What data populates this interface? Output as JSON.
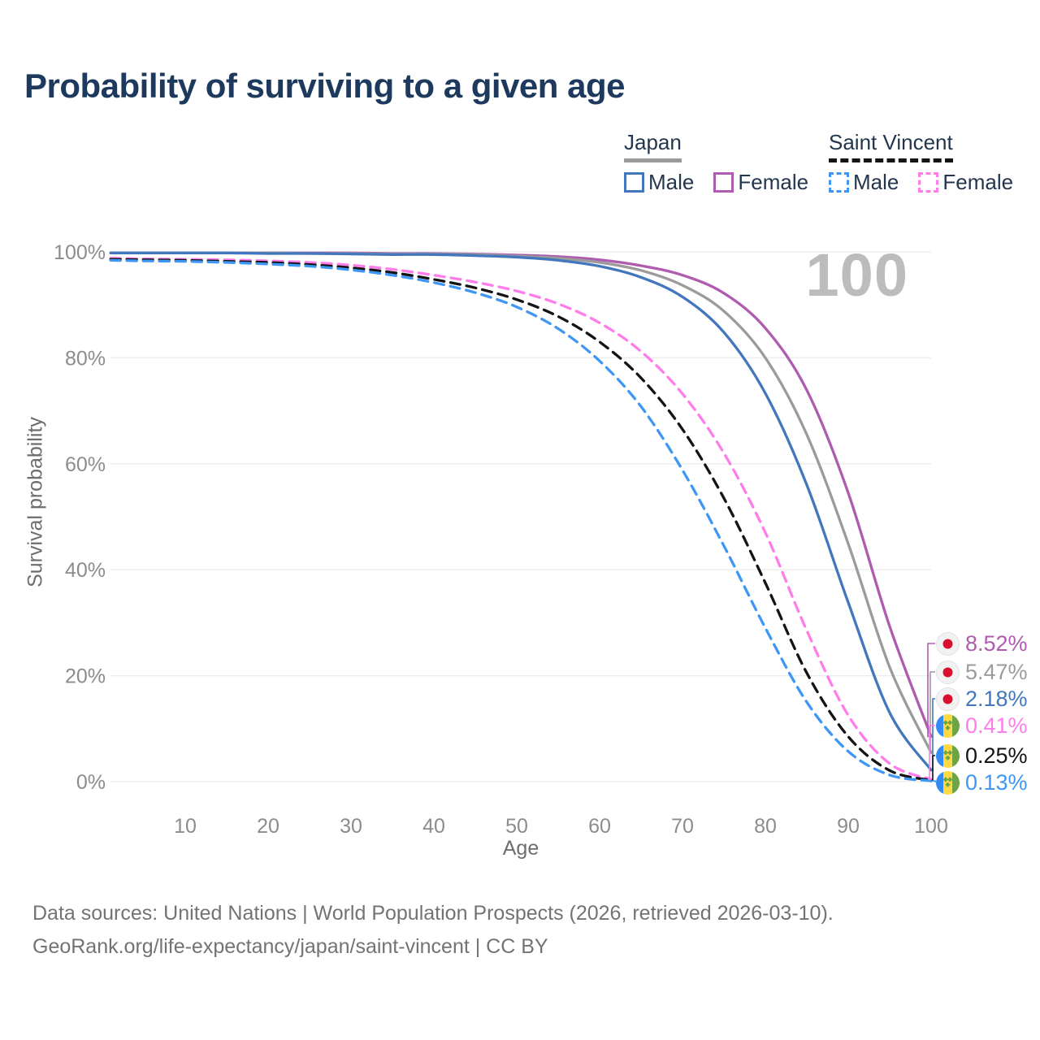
{
  "title": "Probability of surviving to a given age",
  "watermark": "100",
  "legend": {
    "groups": [
      {
        "id": "japan",
        "label": "Japan",
        "underline_style": "solid",
        "underline_color": "#9b9b9b",
        "items": [
          {
            "id": "japan-male",
            "label": "Male",
            "color": "#4277bd",
            "dashed": false
          },
          {
            "id": "japan-female",
            "label": "Female",
            "color": "#ae5bb0",
            "dashed": false
          }
        ]
      },
      {
        "id": "saint-vincent",
        "label": "Saint Vincent",
        "underline_style": "dashed",
        "underline_color": "#141414",
        "items": [
          {
            "id": "sv-male",
            "label": "Male",
            "color": "#3e97f5",
            "dashed": true
          },
          {
            "id": "sv-female",
            "label": "Female",
            "color": "#ff7dea",
            "dashed": true
          }
        ]
      }
    ]
  },
  "chart_data": {
    "type": "line",
    "title": "Probability of surviving to a given age",
    "xlabel": "Age",
    "ylabel": "Survival probability",
    "xlim": [
      0,
      100
    ],
    "ylim": [
      0,
      100
    ],
    "grid": true,
    "x_ticks": [
      10,
      20,
      30,
      40,
      50,
      60,
      70,
      80,
      90,
      100
    ],
    "y_ticks": [
      {
        "value": 0,
        "label": "0%"
      },
      {
        "value": 20,
        "label": "20%"
      },
      {
        "value": 40,
        "label": "40%"
      },
      {
        "value": 60,
        "label": "60%"
      },
      {
        "value": 80,
        "label": "80%"
      },
      {
        "value": 100,
        "label": "100%"
      }
    ],
    "x": [
      1,
      5,
      10,
      15,
      20,
      25,
      30,
      35,
      40,
      45,
      50,
      55,
      60,
      65,
      70,
      75,
      80,
      85,
      90,
      95,
      100
    ],
    "series": [
      {
        "id": "japan-female",
        "name": "Japan Female",
        "color": "#ae5bb0",
        "dashed": false,
        "flag": "japan",
        "end_label": "8.52%",
        "values": [
          99.8,
          99.8,
          99.8,
          99.8,
          99.8,
          99.8,
          99.8,
          99.7,
          99.7,
          99.6,
          99.4,
          99.1,
          98.5,
          97.4,
          95.6,
          92.2,
          85.6,
          73.9,
          54.5,
          29.3,
          8.52
        ]
      },
      {
        "id": "japan-both",
        "name": "Japan",
        "color": "#9b9b9b",
        "dashed": false,
        "flag": "japan",
        "end_label": "5.47%",
        "values": [
          99.8,
          99.8,
          99.8,
          99.8,
          99.8,
          99.7,
          99.7,
          99.6,
          99.6,
          99.5,
          99.2,
          98.8,
          98.0,
          96.5,
          93.7,
          88.8,
          80.0,
          65.5,
          44.9,
          21.6,
          5.47
        ]
      },
      {
        "id": "japan-male",
        "name": "Japan Male",
        "color": "#4277bd",
        "dashed": false,
        "flag": "japan",
        "end_label": "2.18%",
        "values": [
          99.8,
          99.8,
          99.8,
          99.8,
          99.7,
          99.7,
          99.6,
          99.5,
          99.5,
          99.3,
          99.0,
          98.4,
          97.3,
          95.2,
          91.5,
          84.8,
          73.3,
          56.0,
          33.8,
          13.0,
          2.18
        ]
      },
      {
        "id": "sv-female",
        "name": "Saint Vincent Female",
        "color": "#ff7dea",
        "dashed": true,
        "flag": "saint-vincent",
        "end_label": "0.41%",
        "values": [
          98.8,
          98.7,
          98.6,
          98.5,
          98.3,
          98.0,
          97.5,
          96.7,
          95.6,
          94.3,
          92.6,
          90.2,
          86.6,
          81.2,
          73.2,
          62.0,
          47.0,
          28.5,
          12.5,
          3.4,
          0.41
        ]
      },
      {
        "id": "sv-both",
        "name": "Saint Vincent",
        "color": "#141414",
        "dashed": true,
        "flag": "saint-vincent",
        "end_label": "0.25%",
        "values": [
          98.6,
          98.5,
          98.4,
          98.2,
          98.0,
          97.6,
          97.0,
          96.1,
          94.8,
          93.2,
          91.0,
          87.8,
          83.0,
          76.2,
          66.5,
          53.5,
          37.5,
          20.5,
          8.5,
          2.1,
          0.25
        ]
      },
      {
        "id": "sv-male",
        "name": "Saint Vincent Male",
        "color": "#3e97f5",
        "dashed": true,
        "flag": "saint-vincent",
        "end_label": "0.13%",
        "values": [
          98.4,
          98.3,
          98.2,
          98.0,
          97.7,
          97.3,
          96.6,
          95.6,
          94.2,
          92.3,
          89.6,
          85.5,
          79.4,
          70.8,
          58.8,
          44.5,
          29.0,
          15.0,
          5.7,
          1.25,
          0.13
        ]
      }
    ],
    "legend_position": "top-right",
    "flag_colors": {
      "japan": {
        "background": "#f2f2f2",
        "disc": "#d8102e"
      },
      "saint-vincent": {
        "blue": "#338af3",
        "yellow": "#ffd944",
        "green": "#6da544"
      }
    }
  },
  "footer": {
    "line1": "Data sources: United Nations | World Population Prospects (2026, retrieved 2026-03-10).",
    "line2": "GeoRank.org/life-expectancy/japan/saint-vincent | CC BY"
  }
}
